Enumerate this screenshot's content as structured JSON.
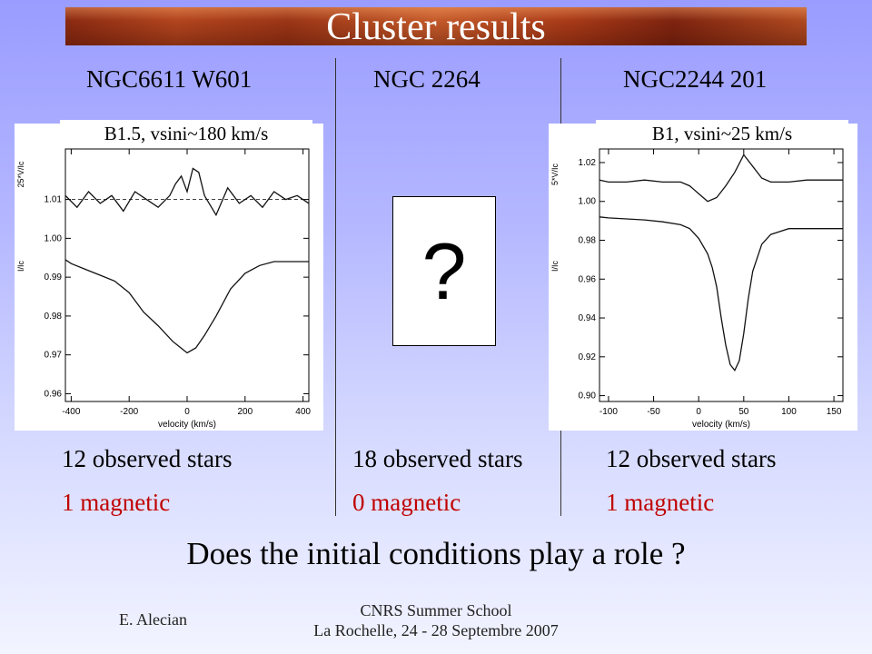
{
  "slide": {
    "title": "Cluster results",
    "columns": [
      {
        "name": "NGC6611 W601",
        "spectral_label": "B1.5, vsini~180 km/s",
        "observed": "12 observed stars",
        "magnetic": "1 magnetic"
      },
      {
        "name": "NGC 2264",
        "placeholder": "?",
        "observed": "18 observed stars",
        "magnetic": "0 magnetic"
      },
      {
        "name": "NGC2244 201",
        "spectral_label": "B1, vsini~25 km/s",
        "observed": "12 observed stars",
        "magnetic": "1 magnetic"
      }
    ],
    "question": "Does the initial conditions play a role ?",
    "footer": {
      "author": "E. Alecian",
      "event_line1": "CNRS Summer School",
      "event_line2": "La Rochelle, 24 - 28 Septembre 2007"
    },
    "colors": {
      "magnetic_text": "#c00000",
      "banner": "#a83a18"
    }
  },
  "chart_data": [
    {
      "type": "line",
      "xlabel": "velocity (km/s)",
      "ylabel": "I/Ic",
      "ylabel2": "25*V/Ic",
      "xlim": [
        -420,
        420
      ],
      "ylim": [
        0.958,
        1.023
      ],
      "xticks": [
        -400,
        -200,
        0,
        200,
        400
      ],
      "yticks": [
        0.96,
        0.97,
        0.98,
        0.99,
        1.0,
        1.01
      ],
      "ytick_labels": [
        "0.96",
        "0.97",
        "0.98",
        "0.99",
        "1.00",
        "1.01"
      ],
      "reference_lines": [
        1.01
      ],
      "series": [
        {
          "role": "stokes_V",
          "x": [
            -420,
            -380,
            -340,
            -300,
            -260,
            -220,
            -180,
            -140,
            -100,
            -60,
            -40,
            -20,
            0,
            20,
            40,
            60,
            100,
            140,
            180,
            220,
            260,
            300,
            340,
            380,
            420
          ],
          "y": [
            1.011,
            1.008,
            1.012,
            1.009,
            1.011,
            1.007,
            1.012,
            1.01,
            1.008,
            1.011,
            1.014,
            1.016,
            1.012,
            1.018,
            1.017,
            1.011,
            1.006,
            1.013,
            1.009,
            1.011,
            1.008,
            1.012,
            1.01,
            1.011,
            1.009
          ]
        },
        {
          "role": "stokes_I",
          "x": [
            -420,
            -400,
            -350,
            -300,
            -250,
            -200,
            -150,
            -100,
            -50,
            0,
            30,
            60,
            100,
            150,
            200,
            250,
            300,
            350,
            400,
            420
          ],
          "y": [
            0.9945,
            0.9935,
            0.992,
            0.9905,
            0.989,
            0.986,
            0.981,
            0.9775,
            0.9735,
            0.9705,
            0.9718,
            0.975,
            0.98,
            0.987,
            0.991,
            0.993,
            0.994,
            0.994,
            0.994,
            0.994
          ]
        }
      ]
    },
    {
      "type": "line",
      "xlabel": "velocity (km/s)",
      "ylabel": "I/Ic",
      "ylabel2": "5*V/Ic",
      "xlim": [
        -110,
        160
      ],
      "ylim": [
        0.897,
        1.027
      ],
      "xticks": [
        -100,
        -50,
        0,
        50,
        100,
        150
      ],
      "yticks": [
        0.9,
        0.92,
        0.94,
        0.96,
        0.98,
        1.0,
        1.02
      ],
      "ytick_labels": [
        "0.90",
        "0.92",
        "0.94",
        "0.96",
        "0.98",
        "1.00",
        "1.02"
      ],
      "series": [
        {
          "role": "stokes_V",
          "x": [
            -110,
            -100,
            -80,
            -60,
            -40,
            -20,
            -10,
            0,
            10,
            20,
            30,
            40,
            50,
            60,
            70,
            80,
            100,
            120,
            140,
            160
          ],
          "y": [
            1.011,
            1.01,
            1.01,
            1.011,
            1.01,
            1.01,
            1.008,
            1.004,
            1.0,
            1.002,
            1.008,
            1.015,
            1.024,
            1.018,
            1.012,
            1.01,
            1.01,
            1.011,
            1.011,
            1.011
          ]
        },
        {
          "role": "stokes_I",
          "x": [
            -110,
            -100,
            -80,
            -60,
            -40,
            -20,
            -10,
            0,
            10,
            15,
            20,
            25,
            30,
            35,
            40,
            45,
            50,
            55,
            60,
            70,
            80,
            100,
            120,
            140,
            160
          ],
          "y": [
            0.992,
            0.9915,
            0.991,
            0.9905,
            0.9895,
            0.988,
            0.986,
            0.981,
            0.973,
            0.966,
            0.956,
            0.94,
            0.926,
            0.916,
            0.913,
            0.918,
            0.932,
            0.95,
            0.964,
            0.978,
            0.983,
            0.986,
            0.986,
            0.986,
            0.986
          ]
        }
      ]
    }
  ]
}
